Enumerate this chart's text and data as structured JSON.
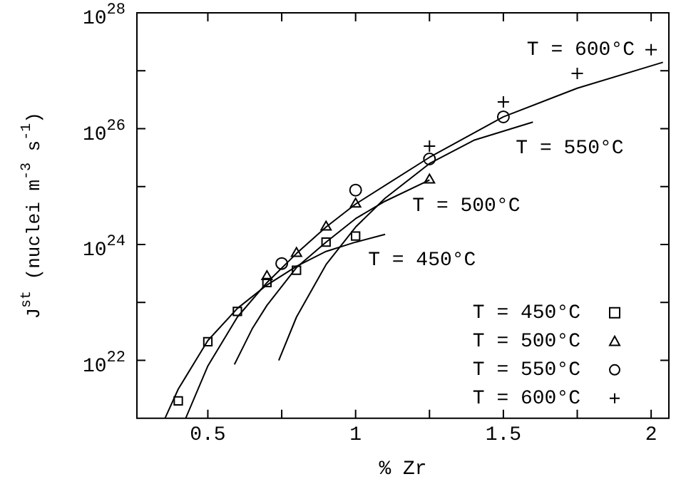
{
  "chart_data": {
    "type": "scatter",
    "xlabel": "% Zr",
    "ylabel": "J$^{st}$ (nuclei m$^{-3}$ s$^{-1}$)",
    "log": "y",
    "xlim": [
      0.26,
      2.06
    ],
    "ylim": [
      1e+21,
      1e+28
    ],
    "xticks": [
      0.5,
      {
        "value": 0.75,
        "label": null
      },
      1,
      {
        "value": 1.25,
        "label": null
      },
      1.5,
      {
        "value": 1.75,
        "label": null
      },
      2
    ],
    "yticks": [
      {
        "value": 1e+22,
        "label": "10$^{22}$"
      },
      {
        "value": 1e+23,
        "label": null
      },
      {
        "value": 1e+24,
        "label": "10$^{24}$"
      },
      {
        "value": 1e+25,
        "label": null
      },
      {
        "value": 1e+26,
        "label": "10$^{26}$"
      },
      {
        "value": 1e+27,
        "label": null
      },
      {
        "value": 1e+28,
        "label": "10$^{28}$"
      }
    ],
    "legend": "bottom right",
    "series": [
      {
        "name": "T = 450°C",
        "type": "line",
        "color": "#000000",
        "marker": "none",
        "x": [
          0.355,
          0.4,
          0.5,
          0.6,
          0.7,
          0.8,
          0.9,
          1.0,
          1.1
        ],
        "values": [
          1e+21,
          3.2e+21,
          2.2e+22,
          7.9e+22,
          2e+23,
          4.2e+23,
          7.6e+23,
          1.1e+24,
          1.5e+24
        ]
      },
      {
        "name": "T = 500°C",
        "type": "line",
        "color": "#000000",
        "marker": "none",
        "x": [
          0.59,
          0.65,
          0.7,
          0.8,
          0.9,
          1.0,
          1.1,
          1.25
        ],
        "values": [
          8.5e+21,
          3.5e+22,
          8.9e+22,
          4e+23,
          1.1e+24,
          2.8e+24,
          5.6e+24,
          1.3e+25
        ]
      },
      {
        "name": "T = 550°C",
        "type": "line",
        "color": "#000000",
        "marker": "none",
        "x": [
          0.74,
          0.8,
          0.9,
          1.0,
          1.1,
          1.25,
          1.4,
          1.6
        ],
        "values": [
          1e+22,
          5.6e+22,
          4.5e+23,
          2e+24,
          6.3e+24,
          2.5e+25,
          6.3e+25,
          1.3e+26
        ]
      },
      {
        "name": "T = 600°C",
        "type": "line",
        "color": "#000000",
        "marker": "none",
        "x": [
          0.425,
          0.5,
          0.6,
          0.7,
          0.8,
          0.9,
          1.0,
          1.25,
          1.5,
          1.75,
          2.04
        ],
        "values": [
          1e+21,
          8e+21,
          5.6e+22,
          2.2e+23,
          7e+23,
          2e+24,
          5e+24,
          3.2e+25,
          1.6e+26,
          5e+26,
          1.4e+27
        ]
      },
      {
        "name": "T = 450°C",
        "color": "#000000",
        "marker": "square",
        "x": [
          0.4,
          0.5,
          0.6,
          0.7,
          0.8,
          0.9,
          1.0
        ],
        "values": [
          2e+21,
          2.1e+22,
          7e+22,
          2.2e+23,
          3.6e+23,
          1.1e+24,
          1.4e+24
        ]
      },
      {
        "name": "T = 500°C",
        "color": "#000000",
        "marker": "triangle",
        "x": [
          0.7,
          0.8,
          0.9,
          1.0,
          1.25
        ],
        "values": [
          2.8e+23,
          7e+23,
          2e+24,
          5e+24,
          1.3e+25
        ]
      },
      {
        "name": "T = 550°C",
        "color": "#000000",
        "marker": "circle",
        "x": [
          0.75,
          1.0,
          1.25,
          1.5
        ],
        "values": [
          4.7e+23,
          8.7e+24,
          3e+25,
          1.6e+26
        ]
      },
      {
        "name": "T = 600°C",
        "color": "#000000",
        "marker": "cross",
        "x": [
          1.25,
          1.5,
          1.75,
          2.0
        ],
        "values": [
          5e+25,
          2.9e+26,
          9e+26,
          2.3e+27
        ]
      }
    ]
  }
}
